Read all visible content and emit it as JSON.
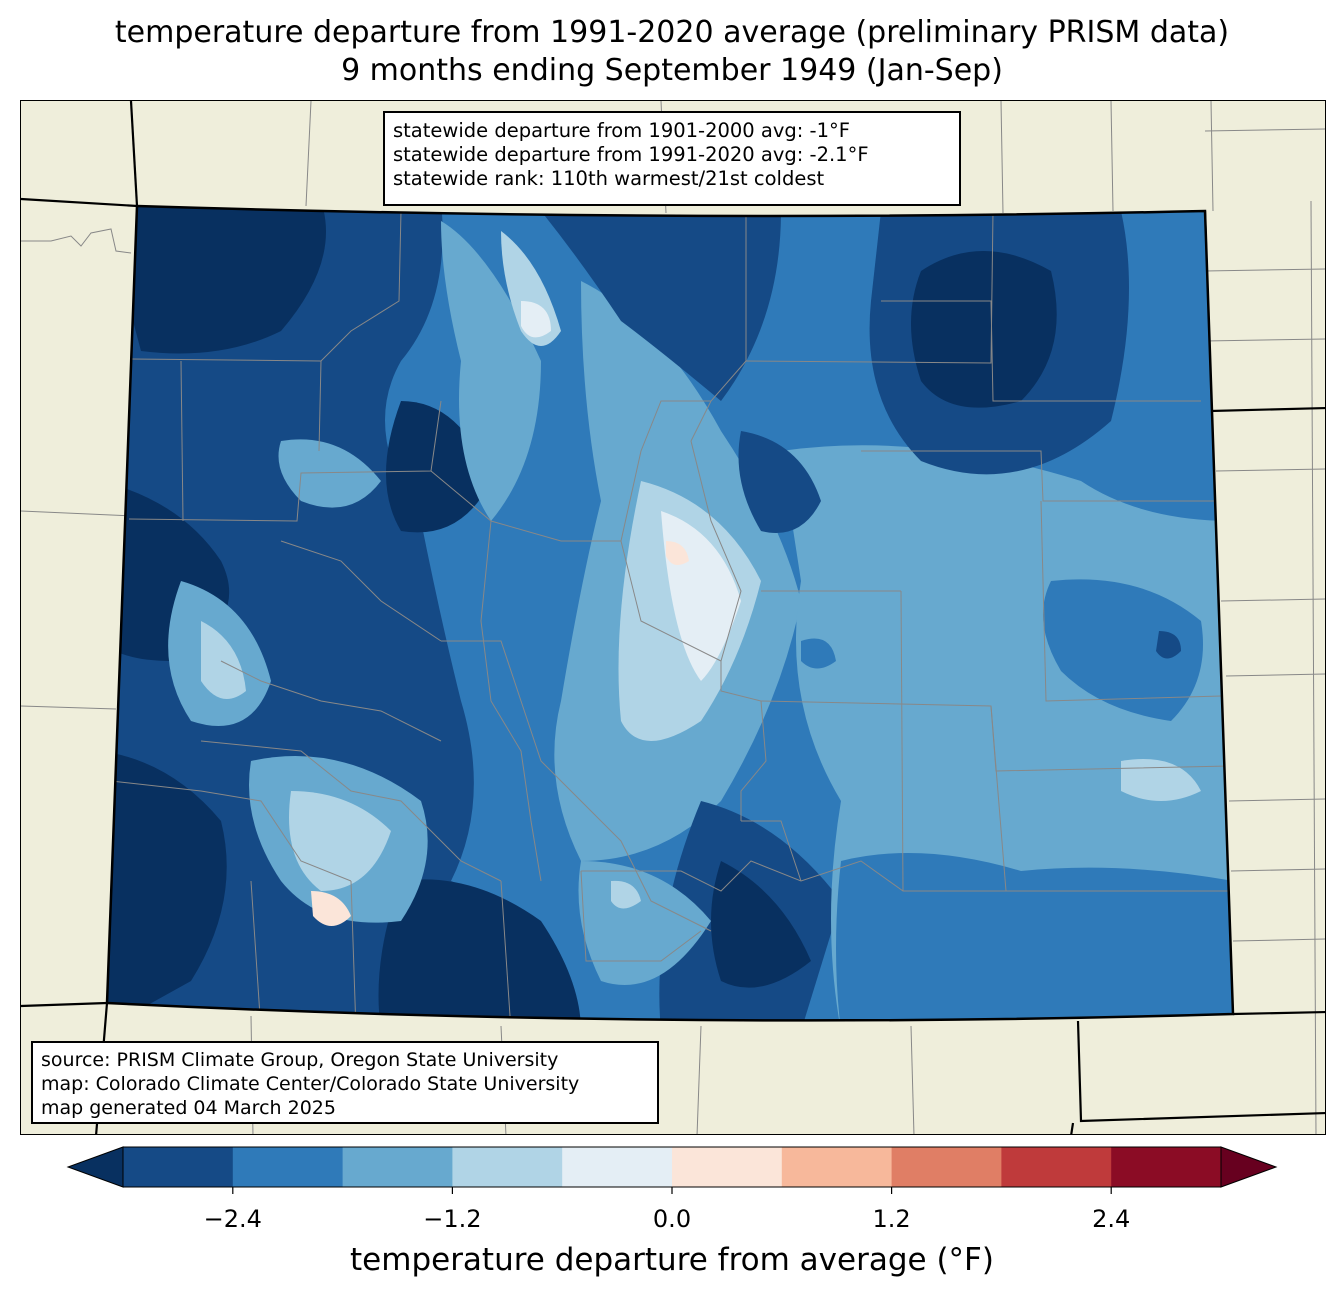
{
  "title": {
    "line1": "temperature departure from 1991-2020 average (preliminary PRISM data)",
    "line2": "9 months ending September 1949 (Jan-Sep)"
  },
  "stats": {
    "line1": "statewide departure from 1901-2000 avg: -1°F",
    "line2": "statewide departure from 1991-2020 avg: -2.1°F",
    "line3": "statewide rank: 110th warmest/21st coldest"
  },
  "source": {
    "line1": "source: PRISM Climate Group, Oregon State University",
    "line2": "map: Colorado Climate Center/Colorado State University",
    "line3": "map generated 04 March 2025"
  },
  "colorbar": {
    "label": "temperature departure from average (°F)",
    "ticks": [
      "−2.4",
      "−1.2",
      "0.0",
      "1.2",
      "2.4"
    ],
    "tick_values": [
      -2.4,
      -1.2,
      0.0,
      1.2,
      2.4
    ],
    "min": -3.0,
    "max": 3.0,
    "levels": [
      -3.0,
      -2.4,
      -1.8,
      -1.2,
      -0.6,
      0.0,
      0.6,
      1.2,
      1.8,
      2.4,
      3.0
    ],
    "colors": [
      "#154a86",
      "#2f7ab9",
      "#67a9cf",
      "#b0d4e6",
      "#e4eef5",
      "#fbe5d9",
      "#f7b89b",
      "#e07e65",
      "#bf3a3b",
      "#8b0c25"
    ],
    "under_color": "#083060",
    "over_color": "#67001f"
  },
  "map": {
    "land_color": "#efeedb",
    "county_line_color": "#888888",
    "state_line_color": "#000000"
  }
}
